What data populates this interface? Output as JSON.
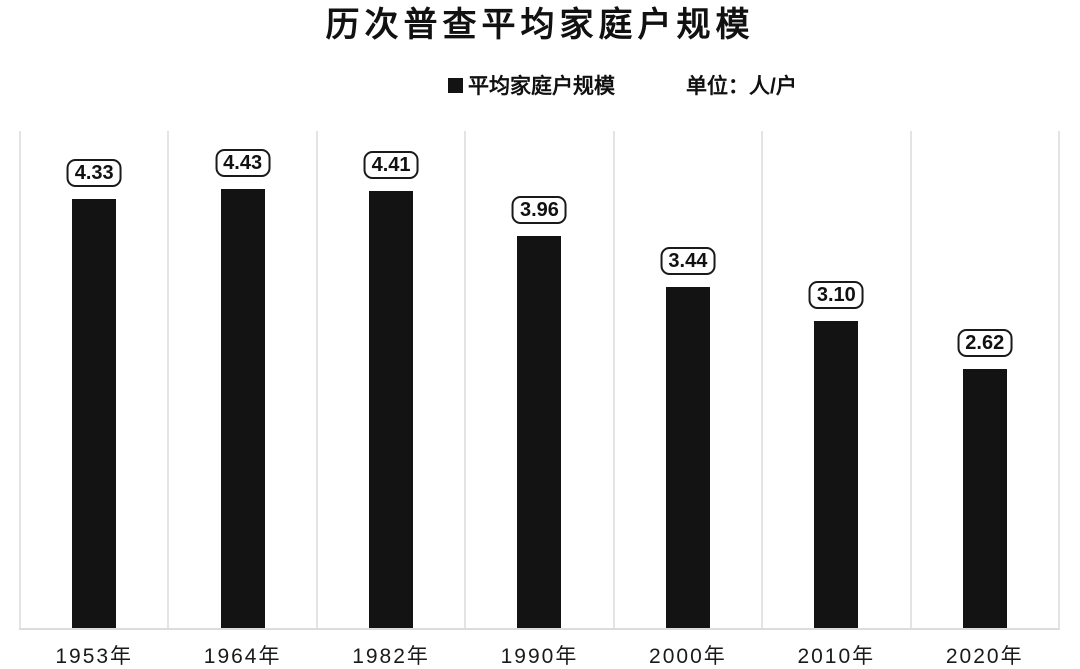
{
  "chart_data": {
    "type": "bar",
    "title": "历次普查平均家庭户规模",
    "legend": {
      "label": "平均家庭户规模",
      "marker": "black-square",
      "position": "top-center"
    },
    "unit_label": "单位：人/户",
    "categories": [
      "1953年",
      "1964年",
      "1982年",
      "1990年",
      "2000年",
      "2010年",
      "2020年"
    ],
    "values": [
      4.33,
      4.43,
      4.41,
      3.96,
      3.44,
      3.1,
      2.62
    ],
    "value_labels": [
      "4.33",
      "4.43",
      "4.41",
      "3.96",
      "3.44",
      "3.10",
      "2.62"
    ],
    "xlabel": "",
    "ylabel": "",
    "ylim": [
      0,
      5.02
    ],
    "grid": "vertical-column-separators",
    "y_axis_ticks_visible": false,
    "colors": {
      "bar": "#131313",
      "gridline": "#e4e4e6",
      "baseline": "#dcdcde",
      "label_box_border": "#1a1a1a",
      "label_box_background": "#ffffff",
      "background": "#ffffff"
    }
  }
}
